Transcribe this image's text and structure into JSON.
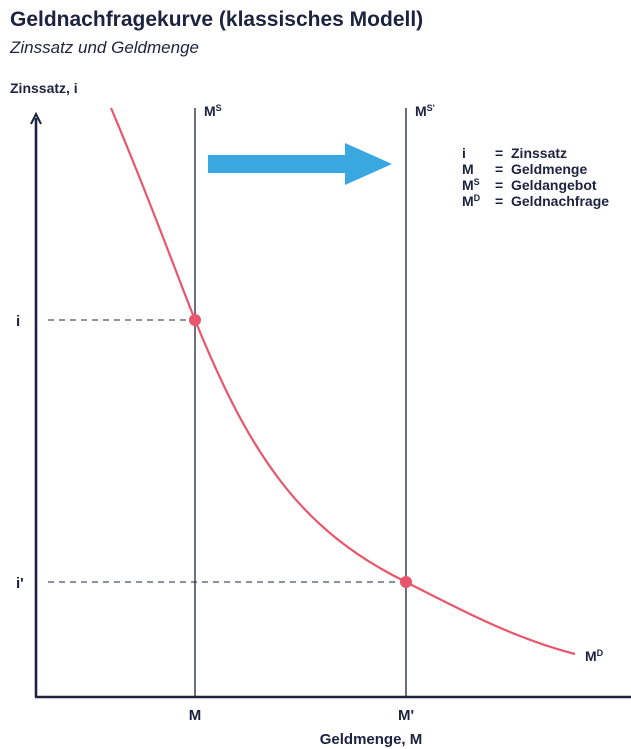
{
  "title": "Geldnachfragekurve (klassisches Modell)",
  "subtitle": "Zinssatz und Geldmenge",
  "axes": {
    "y_label": "Zinssatz, i",
    "x_label": "Geldmenge, M"
  },
  "ticks": {
    "y_high": "i",
    "y_low": "i'",
    "x_left": "M",
    "x_right": "M'"
  },
  "curves": {
    "supply_1": {
      "base": "M",
      "sup": "S"
    },
    "supply_2": {
      "base": "M",
      "sup": "S'"
    },
    "demand": {
      "base": "M",
      "sup": "D"
    }
  },
  "legend": [
    {
      "sym": "i",
      "sup": "",
      "eq": "=",
      "text": "Zinssatz"
    },
    {
      "sym": "M",
      "sup": "",
      "eq": "=",
      "text": "Geldmenge"
    },
    {
      "sym": "M",
      "sup": "S",
      "eq": "=",
      "text": "Geldangebot"
    },
    {
      "sym": "M",
      "sup": "D",
      "eq": "=",
      "text": "Geldnachfrage"
    }
  ],
  "colors": {
    "axis": "#1c2340",
    "demand_curve": "#e8566b",
    "arrow": "#3aa8e0"
  }
}
